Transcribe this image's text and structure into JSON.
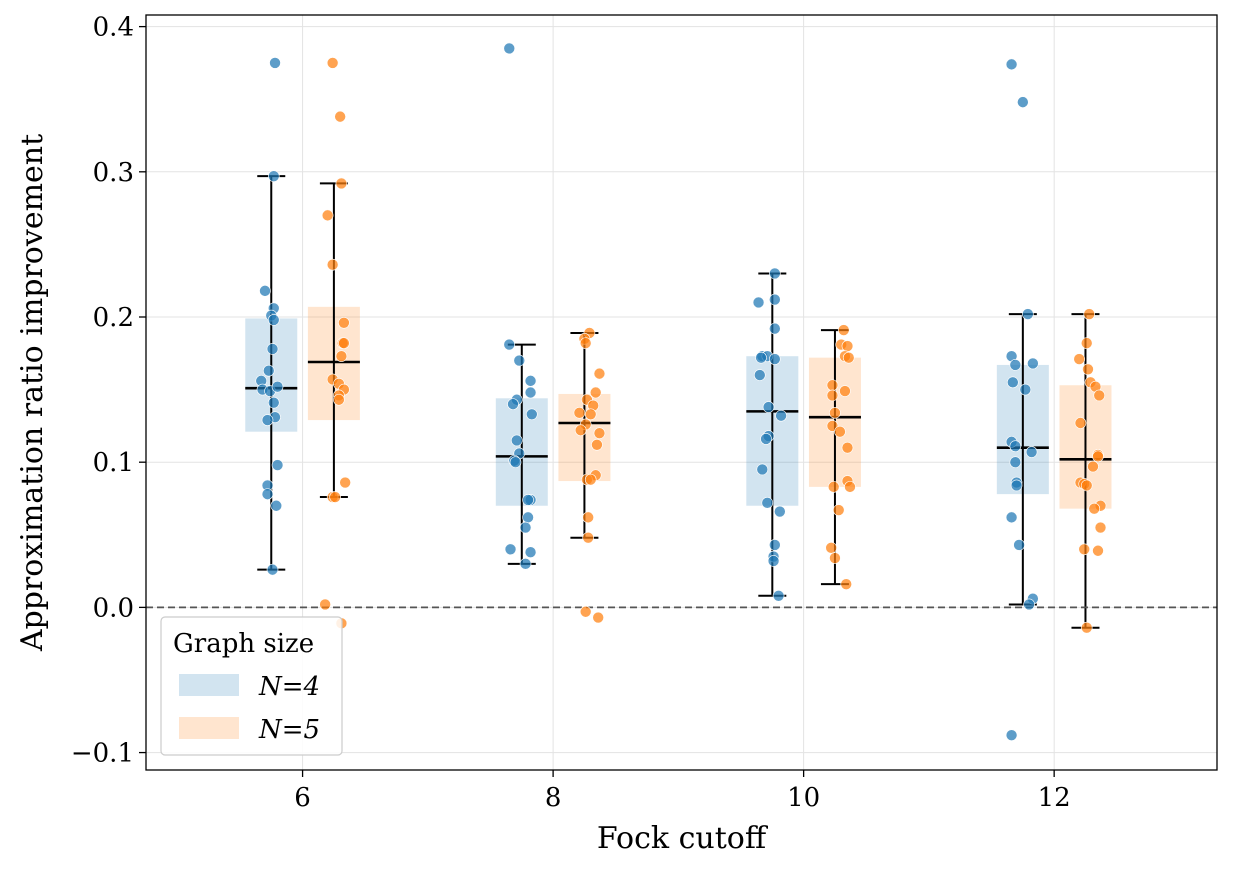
{
  "chart_data": {
    "type": "box",
    "xlabel": "Fock cutoff",
    "ylabel": "Approximation ratio improvement",
    "xlim": [
      4.75,
      13.3
    ],
    "ylim": [
      -0.112,
      0.408
    ],
    "x_ticks": [
      "6",
      "8",
      "10",
      "12"
    ],
    "y_ticks": [
      "−0.1",
      "0.0",
      "0.1",
      "0.2",
      "0.3",
      "0.4"
    ],
    "y_tick_values": [
      -0.1,
      0.0,
      0.1,
      0.2,
      0.3,
      0.4
    ],
    "grid": true,
    "reference_line": {
      "y": 0.0,
      "style": "dashed",
      "color": "#555555"
    },
    "legend": {
      "title": "Graph size",
      "placement": "lower-left",
      "entries": [
        {
          "label": "N=4",
          "color": "#1f77b4"
        },
        {
          "label": "N=5",
          "color": "#ff7f0e"
        }
      ]
    },
    "series": [
      {
        "name": "N=4",
        "color": "#1f77b4",
        "groups": [
          {
            "x": 5.75,
            "q1": 0.121,
            "median": 0.151,
            "q3": 0.199,
            "whisker_low": 0.026,
            "whisker_high": 0.297,
            "points": [
              [
                5.78,
                0.375
              ],
              [
                5.77,
                0.297
              ],
              [
                5.7,
                0.218
              ],
              [
                5.77,
                0.206
              ],
              [
                5.75,
                0.201
              ],
              [
                5.77,
                0.198
              ],
              [
                5.76,
                0.178
              ],
              [
                5.73,
                0.163
              ],
              [
                5.67,
                0.156
              ],
              [
                5.68,
                0.15
              ],
              [
                5.74,
                0.149
              ],
              [
                5.8,
                0.152
              ],
              [
                5.77,
                0.141
              ],
              [
                5.78,
                0.131
              ],
              [
                5.72,
                0.129
              ],
              [
                5.8,
                0.098
              ],
              [
                5.72,
                0.084
              ],
              [
                5.72,
                0.078
              ],
              [
                5.79,
                0.07
              ],
              [
                5.76,
                0.026
              ]
            ]
          },
          {
            "x": 7.75,
            "q1": 0.07,
            "median": 0.104,
            "q3": 0.144,
            "whisker_low": 0.03,
            "whisker_high": 0.181,
            "points": [
              [
                7.65,
                0.385
              ],
              [
                7.65,
                0.181
              ],
              [
                7.73,
                0.17
              ],
              [
                7.82,
                0.156
              ],
              [
                7.82,
                0.148
              ],
              [
                7.71,
                0.143
              ],
              [
                7.68,
                0.14
              ],
              [
                7.83,
                0.133
              ],
              [
                7.71,
                0.115
              ],
              [
                7.73,
                0.106
              ],
              [
                7.69,
                0.101
              ],
              [
                7.7,
                0.1
              ],
              [
                7.82,
                0.074
              ],
              [
                7.8,
                0.074
              ],
              [
                7.8,
                0.062
              ],
              [
                7.78,
                0.055
              ],
              [
                7.66,
                0.04
              ],
              [
                7.82,
                0.038
              ],
              [
                7.78,
                0.03
              ]
            ]
          },
          {
            "x": 9.75,
            "q1": 0.07,
            "median": 0.135,
            "q3": 0.173,
            "whisker_low": 0.008,
            "whisker_high": 0.23,
            "points": [
              [
                9.77,
                0.23
              ],
              [
                9.77,
                0.212
              ],
              [
                9.64,
                0.21
              ],
              [
                9.77,
                0.192
              ],
              [
                9.67,
                0.173
              ],
              [
                9.71,
                0.173
              ],
              [
                9.66,
                0.172
              ],
              [
                9.77,
                0.171
              ],
              [
                9.65,
                0.16
              ],
              [
                9.72,
                0.138
              ],
              [
                9.82,
                0.132
              ],
              [
                9.72,
                0.118
              ],
              [
                9.7,
                0.116
              ],
              [
                9.67,
                0.095
              ],
              [
                9.71,
                0.072
              ],
              [
                9.81,
                0.066
              ],
              [
                9.77,
                0.043
              ],
              [
                9.76,
                0.035
              ],
              [
                9.76,
                0.032
              ],
              [
                9.8,
                0.008
              ]
            ]
          },
          {
            "x": 11.75,
            "q1": 0.078,
            "median": 0.11,
            "q3": 0.167,
            "whisker_low": 0.002,
            "whisker_high": 0.202,
            "points": [
              [
                11.66,
                0.374
              ],
              [
                11.75,
                0.348
              ],
              [
                11.79,
                0.202
              ],
              [
                11.66,
                0.173
              ],
              [
                11.83,
                0.168
              ],
              [
                11.69,
                0.167
              ],
              [
                11.67,
                0.155
              ],
              [
                11.77,
                0.15
              ],
              [
                11.66,
                0.114
              ],
              [
                11.69,
                0.111
              ],
              [
                11.82,
                0.107
              ],
              [
                11.69,
                0.1
              ],
              [
                11.7,
                0.086
              ],
              [
                11.7,
                0.084
              ],
              [
                11.66,
                0.062
              ],
              [
                11.72,
                0.043
              ],
              [
                11.83,
                0.006
              ],
              [
                11.8,
                0.002
              ],
              [
                11.66,
                -0.088
              ]
            ]
          }
        ]
      },
      {
        "name": "N=5",
        "color": "#ff7f0e",
        "groups": [
          {
            "x": 6.25,
            "q1": 0.129,
            "median": 0.169,
            "q3": 0.207,
            "whisker_low": 0.076,
            "whisker_high": 0.292,
            "points": [
              [
                6.24,
                0.375
              ],
              [
                6.3,
                0.338
              ],
              [
                6.31,
                0.292
              ],
              [
                6.2,
                0.27
              ],
              [
                6.24,
                0.236
              ],
              [
                6.33,
                0.196
              ],
              [
                6.32,
                0.182
              ],
              [
                6.33,
                0.182
              ],
              [
                6.31,
                0.173
              ],
              [
                6.24,
                0.157
              ],
              [
                6.29,
                0.154
              ],
              [
                6.33,
                0.15
              ],
              [
                6.29,
                0.146
              ],
              [
                6.29,
                0.143
              ],
              [
                6.34,
                0.086
              ],
              [
                6.24,
                0.076
              ],
              [
                6.26,
                0.076
              ],
              [
                6.18,
                0.002
              ],
              [
                6.31,
                -0.011
              ]
            ]
          },
          {
            "x": 8.25,
            "q1": 0.087,
            "median": 0.127,
            "q3": 0.147,
            "whisker_low": 0.048,
            "whisker_high": 0.189,
            "points": [
              [
                8.29,
                0.189
              ],
              [
                8.25,
                0.185
              ],
              [
                8.26,
                0.182
              ],
              [
                8.37,
                0.161
              ],
              [
                8.34,
                0.148
              ],
              [
                8.27,
                0.143
              ],
              [
                8.32,
                0.139
              ],
              [
                8.21,
                0.134
              ],
              [
                8.3,
                0.133
              ],
              [
                8.26,
                0.126
              ],
              [
                8.22,
                0.122
              ],
              [
                8.37,
                0.12
              ],
              [
                8.35,
                0.112
              ],
              [
                8.34,
                0.091
              ],
              [
                8.27,
                0.088
              ],
              [
                8.3,
                0.088
              ],
              [
                8.28,
                0.062
              ],
              [
                8.28,
                0.048
              ],
              [
                8.26,
                -0.003
              ],
              [
                8.36,
                -0.007
              ]
            ]
          },
          {
            "x": 10.25,
            "q1": 0.083,
            "median": 0.131,
            "q3": 0.172,
            "whisker_low": 0.016,
            "whisker_high": 0.191,
            "points": [
              [
                10.32,
                0.191
              ],
              [
                10.3,
                0.181
              ],
              [
                10.35,
                0.18
              ],
              [
                10.33,
                0.173
              ],
              [
                10.36,
                0.172
              ],
              [
                10.23,
                0.153
              ],
              [
                10.33,
                0.149
              ],
              [
                10.23,
                0.146
              ],
              [
                10.25,
                0.134
              ],
              [
                10.23,
                0.125
              ],
              [
                10.29,
                0.121
              ],
              [
                10.35,
                0.11
              ],
              [
                10.35,
                0.087
              ],
              [
                10.37,
                0.083
              ],
              [
                10.24,
                0.083
              ],
              [
                10.28,
                0.067
              ],
              [
                10.22,
                0.041
              ],
              [
                10.25,
                0.034
              ],
              [
                10.34,
                0.016
              ]
            ]
          },
          {
            "x": 12.25,
            "q1": 0.068,
            "median": 0.102,
            "q3": 0.153,
            "whisker_low": -0.014,
            "whisker_high": 0.202,
            "points": [
              [
                12.28,
                0.202
              ],
              [
                12.26,
                0.182
              ],
              [
                12.2,
                0.171
              ],
              [
                12.27,
                0.164
              ],
              [
                12.29,
                0.155
              ],
              [
                12.33,
                0.152
              ],
              [
                12.36,
                0.146
              ],
              [
                12.21,
                0.127
              ],
              [
                12.35,
                0.105
              ],
              [
                12.35,
                0.104
              ],
              [
                12.31,
                0.097
              ],
              [
                12.21,
                0.086
              ],
              [
                12.24,
                0.085
              ],
              [
                12.26,
                0.084
              ],
              [
                12.37,
                0.07
              ],
              [
                12.32,
                0.068
              ],
              [
                12.37,
                0.055
              ],
              [
                12.24,
                0.04
              ],
              [
                12.35,
                0.039
              ],
              [
                12.26,
                -0.014
              ]
            ]
          }
        ]
      }
    ]
  }
}
